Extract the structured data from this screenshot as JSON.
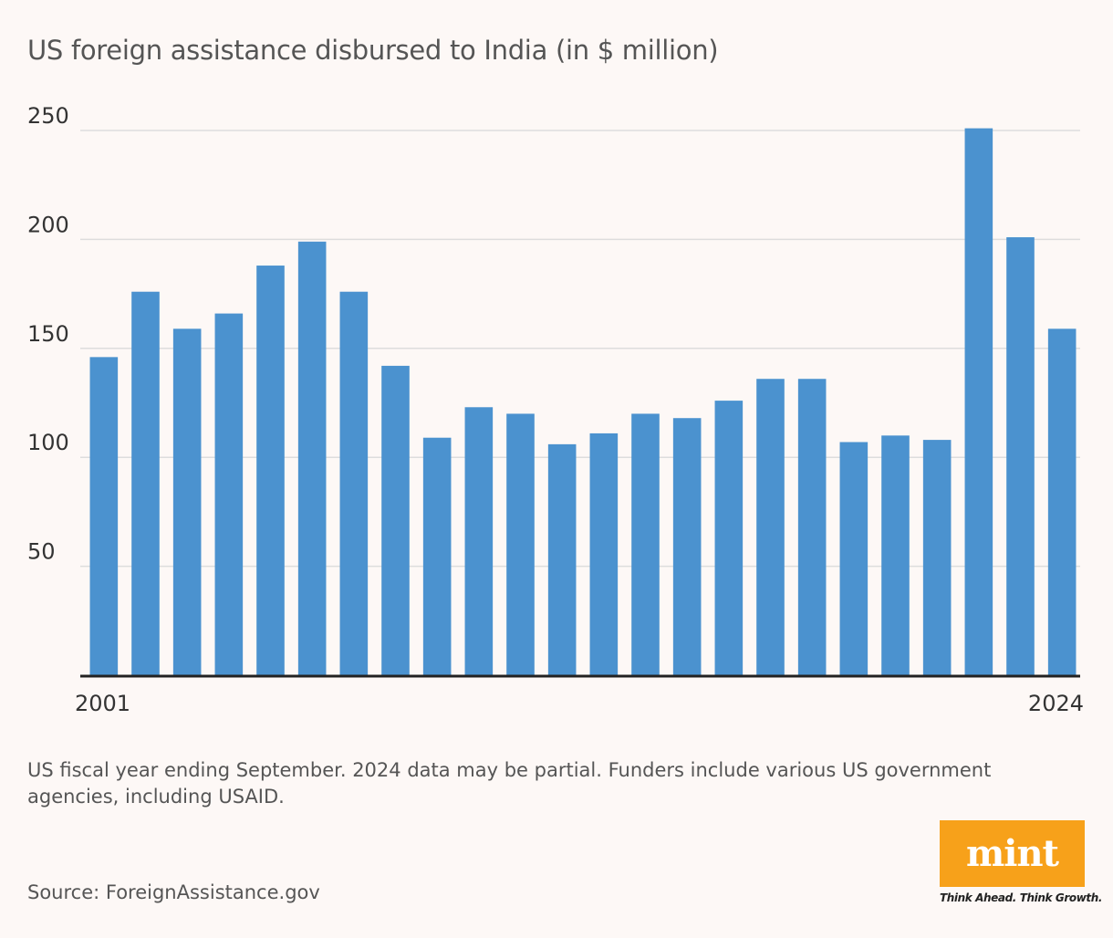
{
  "chart_data": {
    "type": "bar",
    "title": "US foreign assistance disbursed to India (in $ million)",
    "x_tick_labels": [
      "2001",
      "2024"
    ],
    "categories": [
      "2001",
      "2002",
      "2003",
      "2004",
      "2005",
      "2006",
      "2007",
      "2008",
      "2009",
      "2010",
      "2011",
      "2012",
      "2013",
      "2014",
      "2015",
      "2016",
      "2017",
      "2018",
      "2019",
      "2020",
      "2021",
      "2022",
      "2023",
      "2024"
    ],
    "values": [
      146,
      176,
      159,
      166,
      188,
      199,
      176,
      142,
      109,
      123,
      120,
      106,
      111,
      120,
      118,
      126,
      136,
      136,
      107,
      110,
      108,
      251,
      201,
      159
    ],
    "yticks": [
      50,
      100,
      150,
      200,
      250
    ],
    "ylim": [
      0,
      250
    ],
    "grid": true,
    "legend": "none",
    "bar_color": "#4b92cf",
    "grid_color": "#dddddd",
    "axis_color": "#222222"
  },
  "note": "US fiscal year ending September. 2024 data may be partial. Funders include various US government agencies, including USAID.",
  "source": "Source: ForeignAssistance.gov",
  "logo": {
    "text": "mint",
    "tagline": "Think Ahead. Think Growth.",
    "color": "#f7a11a"
  }
}
